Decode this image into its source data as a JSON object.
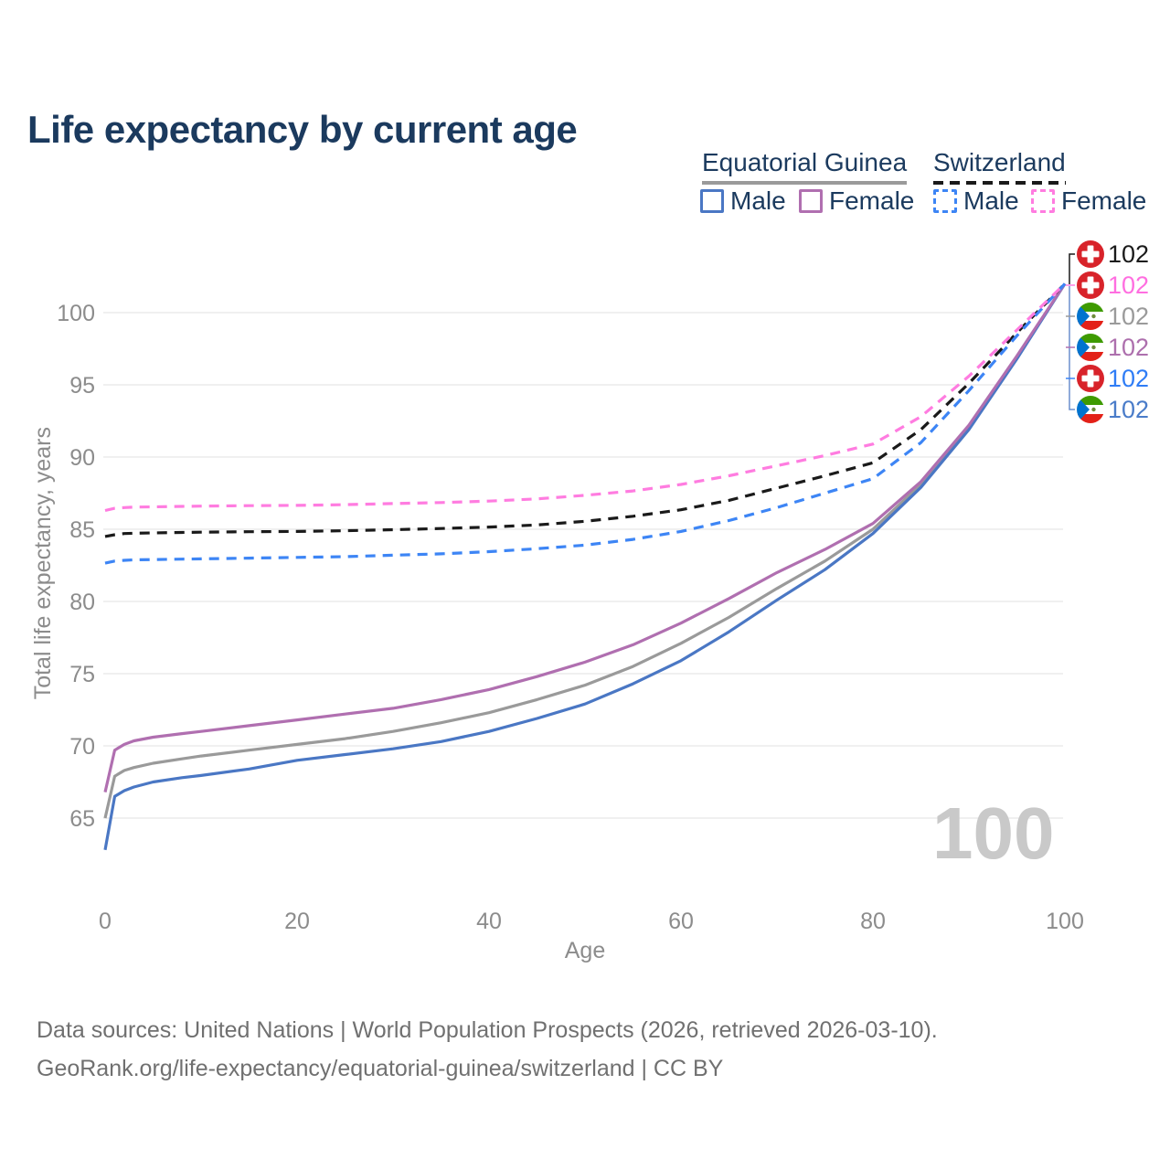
{
  "header": {
    "title": "Life expectancy by current age"
  },
  "legend": {
    "groups": [
      {
        "label": "Equatorial Guinea",
        "line_style": "solid",
        "underline_color": "#9a9a9a",
        "items": [
          {
            "label": "Male",
            "color": "#4a77c4",
            "dashed": false
          },
          {
            "label": "Female",
            "color": "#b06fb0",
            "dashed": false
          }
        ]
      },
      {
        "label": "Switzerland",
        "line_style": "dashed",
        "underline_color": "#1a1a1a",
        "items": [
          {
            "label": "Male",
            "color": "#3d85f5",
            "dashed": true
          },
          {
            "label": "Female",
            "color": "#ff7ce0",
            "dashed": true
          }
        ]
      }
    ]
  },
  "chart_data": {
    "type": "line",
    "title": "Life expectancy by current age",
    "xlabel": "Age",
    "ylabel": "Total life expectancy, years",
    "xlim": [
      0,
      100
    ],
    "ylim": [
      62,
      103
    ],
    "xticks": [
      0,
      20,
      40,
      60,
      80,
      100
    ],
    "yticks": [
      65,
      70,
      75,
      80,
      85,
      90,
      95,
      100
    ],
    "grid": "horizontal",
    "legend_position": "top-right",
    "x": [
      0,
      1,
      2,
      3,
      5,
      8,
      10,
      15,
      20,
      25,
      30,
      35,
      40,
      45,
      50,
      55,
      60,
      65,
      70,
      75,
      80,
      85,
      90,
      95,
      100
    ],
    "series": [
      {
        "id": "eq-guinea-both",
        "name": "Equatorial Guinea Both sexes",
        "color": "#9a9a9a",
        "dashed": false,
        "values": [
          65.0,
          67.9,
          68.3,
          68.5,
          68.8,
          69.1,
          69.3,
          69.7,
          70.1,
          70.5,
          71.0,
          71.6,
          72.3,
          73.2,
          74.2,
          75.5,
          77.1,
          78.9,
          80.9,
          82.8,
          85.0,
          88.1,
          92.05,
          96.9,
          102
        ]
      },
      {
        "id": "eq-guinea-male",
        "name": "Equatorial Guinea Male",
        "color": "#4a77c4",
        "dashed": false,
        "values": [
          62.8,
          66.5,
          66.9,
          67.15,
          67.5,
          67.8,
          67.95,
          68.4,
          69.0,
          69.4,
          69.8,
          70.3,
          71.0,
          71.9,
          72.9,
          74.3,
          75.9,
          77.9,
          80.1,
          82.2,
          84.7,
          87.9,
          91.9,
          96.8,
          102
        ]
      },
      {
        "id": "eq-guinea-female",
        "name": "Equatorial Guinea Female",
        "color": "#b06fb0",
        "dashed": false,
        "values": [
          66.8,
          69.7,
          70.1,
          70.35,
          70.6,
          70.85,
          71.0,
          71.4,
          71.8,
          72.2,
          72.6,
          73.2,
          73.9,
          74.8,
          75.8,
          77.0,
          78.5,
          80.2,
          82.0,
          83.6,
          85.4,
          88.3,
          92.2,
          97.0,
          102
        ]
      },
      {
        "id": "switzerland-both",
        "name": "Switzerland Both sexes",
        "color": "#1a1a1a",
        "dashed": true,
        "values": [
          84.5,
          84.62,
          84.7,
          84.72,
          84.75,
          84.78,
          84.8,
          84.83,
          84.85,
          84.9,
          84.97,
          85.05,
          85.15,
          85.3,
          85.55,
          85.9,
          86.35,
          87.0,
          87.85,
          88.7,
          89.6,
          91.9,
          95.1,
          98.6,
          102
        ]
      },
      {
        "id": "switzerland-male",
        "name": "Switzerland Male",
        "color": "#3d85f5",
        "dashed": true,
        "values": [
          82.65,
          82.8,
          82.85,
          82.88,
          82.9,
          82.93,
          82.95,
          83.0,
          83.05,
          83.1,
          83.2,
          83.3,
          83.45,
          83.65,
          83.9,
          84.3,
          84.85,
          85.6,
          86.5,
          87.5,
          88.5,
          91.0,
          94.6,
          98.4,
          102
        ]
      },
      {
        "id": "switzerland-female",
        "name": "Switzerland Female",
        "color": "#ff7ce0",
        "dashed": true,
        "values": [
          86.3,
          86.45,
          86.5,
          86.53,
          86.55,
          86.58,
          86.6,
          86.63,
          86.65,
          86.7,
          86.78,
          86.85,
          86.95,
          87.1,
          87.35,
          87.65,
          88.1,
          88.7,
          89.4,
          90.1,
          90.9,
          92.8,
          95.6,
          98.8,
          102
        ]
      }
    ],
    "end_labels": [
      {
        "flag": "switzerland-flag-icon",
        "value": "102",
        "color": "#1a1a1a"
      },
      {
        "flag": "switzerland-flag-icon",
        "value": "102",
        "color": "#ff6ee0"
      },
      {
        "flag": "equatorial-guinea-flag-icon",
        "value": "102",
        "color": "#9a9a9a"
      },
      {
        "flag": "equatorial-guinea-flag-icon",
        "value": "102",
        "color": "#ad6fad"
      },
      {
        "flag": "switzerland-flag-icon",
        "value": "102",
        "color": "#2f7df6"
      },
      {
        "flag": "equatorial-guinea-flag-icon",
        "value": "102",
        "color": "#4a7cc9"
      }
    ],
    "colors": {
      "grid": "#e7e7e7",
      "axis_text": "#8c8c8c",
      "swiss_flag_red": "#d8232a",
      "eq_guinea_green": "#3e9a00",
      "eq_guinea_red": "#e32118",
      "eq_guinea_blue": "#0073ce"
    }
  },
  "watermark": "100",
  "footer": {
    "line1": "Data sources: United Nations | World Population Prospects (2026, retrieved 2026-03-10).",
    "line2": "GeoRank.org/life-expectancy/equatorial-guinea/switzerland | CC BY"
  }
}
